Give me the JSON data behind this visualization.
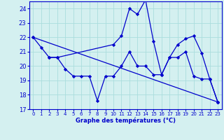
{
  "xlabel": "Graphe des températures (°C)",
  "bg_color": "#d4f0f0",
  "line_color": "#0000cc",
  "grid_color": "#aadddd",
  "ylim": [
    17,
    24.5
  ],
  "xlim": [
    -0.5,
    23.5
  ],
  "yticks": [
    17,
    18,
    19,
    20,
    21,
    22,
    23,
    24
  ],
  "xticks": [
    0,
    1,
    2,
    3,
    4,
    5,
    6,
    7,
    8,
    9,
    10,
    11,
    12,
    13,
    14,
    15,
    16,
    17,
    18,
    19,
    20,
    21,
    22,
    23
  ],
  "series": [
    {
      "x": [
        0,
        1,
        2,
        3,
        10,
        11,
        12,
        13,
        14,
        15,
        16,
        17,
        18,
        19,
        20,
        21,
        22,
        23
      ],
      "y": [
        22.0,
        21.3,
        20.6,
        20.6,
        21.5,
        22.1,
        24.0,
        23.6,
        24.6,
        21.7,
        19.4,
        20.6,
        21.5,
        21.9,
        22.1,
        20.9,
        19.1,
        17.5
      ]
    },
    {
      "x": [
        2,
        3,
        4,
        5,
        6,
        7,
        8,
        9,
        10,
        11,
        12,
        13,
        14,
        15,
        16,
        17,
        18,
        19,
        20,
        21,
        22,
        23
      ],
      "y": [
        20.6,
        20.6,
        19.8,
        19.3,
        19.3,
        19.3,
        17.6,
        19.3,
        19.3,
        20.0,
        21.0,
        20.0,
        20.0,
        19.4,
        19.4,
        20.6,
        20.6,
        21.0,
        19.3,
        19.1,
        19.1,
        17.5
      ]
    },
    {
      "x": [
        0,
        23
      ],
      "y": [
        22.0,
        17.5
      ]
    }
  ]
}
